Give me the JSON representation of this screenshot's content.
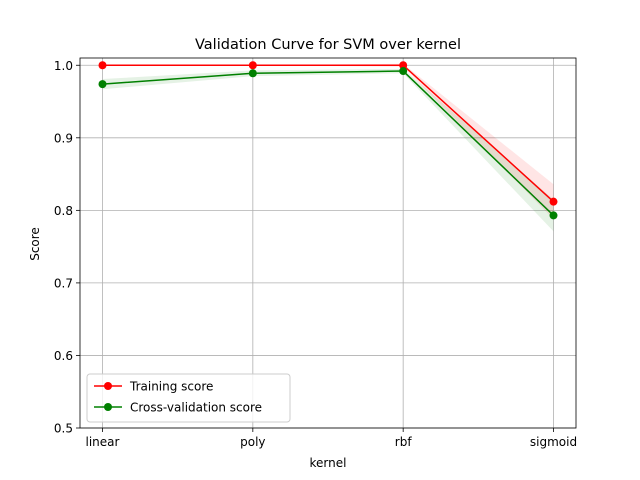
{
  "chart_data": {
    "type": "line",
    "title": "Validation Curve for SVM over kernel",
    "xlabel": "kernel",
    "ylabel": "Score",
    "categories": [
      "linear",
      "poly",
      "rbf",
      "sigmoid"
    ],
    "ylim": [
      0.5,
      1.01
    ],
    "yticks": [
      "0.5",
      "0.6",
      "0.7",
      "0.8",
      "0.9",
      "1.0"
    ],
    "grid": true,
    "legend_position": "lower-left",
    "series": [
      {
        "name": "Training score",
        "color": "#ff0000",
        "values": [
          1.0,
          1.0,
          1.0,
          0.812
        ],
        "band_lower": [
          1.0,
          1.0,
          0.998,
          0.788
        ],
        "band_upper": [
          1.0,
          1.0,
          1.002,
          0.836
        ]
      },
      {
        "name": "Cross-validation score",
        "color": "#008000",
        "values": [
          0.974,
          0.989,
          0.992,
          0.793
        ],
        "band_lower": [
          0.967,
          0.985,
          0.989,
          0.771
        ],
        "band_upper": [
          0.981,
          0.993,
          0.995,
          0.815
        ]
      }
    ]
  }
}
